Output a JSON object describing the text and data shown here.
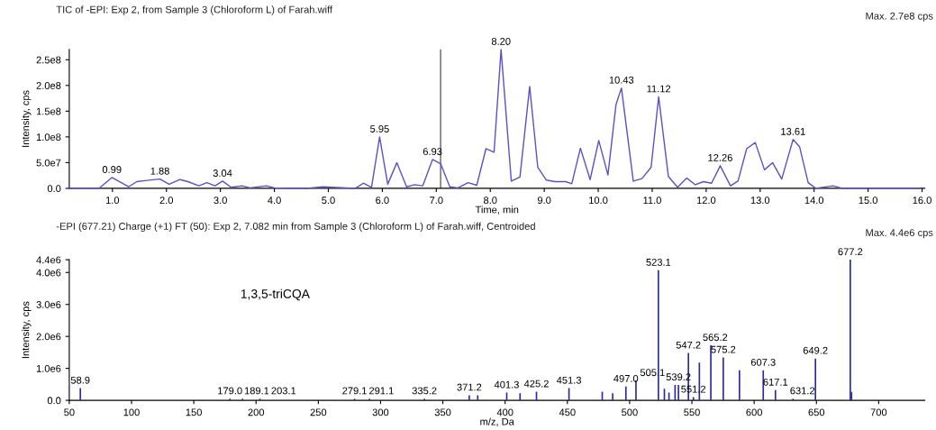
{
  "chart_data": [
    {
      "type": "line",
      "title": "TIC of -EPI: Exp 2, from Sample 3 (Chloroform L) of Farah.wiff",
      "xlabel": "Time, min",
      "ylabel": "Intensity, cps",
      "x": [
        0.2,
        0.75,
        0.99,
        1.3,
        1.45,
        1.6,
        1.88,
        2.05,
        2.25,
        2.4,
        2.6,
        2.75,
        2.9,
        3.04,
        3.2,
        3.4,
        3.55,
        3.85,
        4.0,
        4.3,
        4.6,
        4.9,
        5.5,
        5.65,
        5.8,
        5.95,
        6.1,
        6.27,
        6.45,
        6.6,
        6.75,
        6.93,
        7.08,
        7.25,
        7.4,
        7.59,
        7.75,
        7.92,
        8.07,
        8.2,
        8.39,
        8.55,
        8.73,
        8.88,
        9.04,
        9.2,
        9.4,
        9.51,
        9.67,
        9.85,
        10.01,
        10.18,
        10.33,
        10.43,
        10.65,
        10.81,
        10.98,
        11.12,
        11.3,
        11.47,
        11.64,
        11.8,
        11.95,
        12.1,
        12.26,
        12.45,
        12.59,
        12.75,
        12.91,
        13.08,
        13.23,
        13.4,
        13.61,
        13.73,
        13.89,
        14.03,
        14.35,
        14.52,
        15.95
      ],
      "series": [
        {
          "color": "#5a50c8",
          "values": [
            0,
            0,
            21000000,
            3000000,
            13000000,
            15000000,
            18000000,
            8000000,
            17000000,
            13000000,
            5000000,
            11000000,
            5000000,
            14000000,
            2000000,
            5000000,
            1000000,
            5000000,
            1000000,
            0,
            0,
            3000000,
            0,
            10000000,
            2000000,
            100000000,
            8000000,
            50000000,
            3000000,
            7000000,
            5000000,
            56000000,
            48000000,
            3000000,
            1000000,
            11000000,
            6000000,
            77000000,
            70000000,
            270000000,
            14000000,
            22000000,
            198000000,
            41000000,
            16000000,
            13000000,
            13000000,
            9000000,
            78000000,
            17000000,
            93000000,
            26000000,
            163000000,
            195000000,
            14000000,
            19000000,
            41000000,
            178000000,
            23000000,
            2000000,
            20000000,
            7000000,
            13000000,
            10000000,
            44000000,
            5000000,
            14000000,
            77000000,
            89000000,
            36000000,
            50000000,
            18000000,
            95000000,
            81000000,
            11000000,
            0,
            5000000,
            0,
            0
          ]
        }
      ],
      "xlim": [
        0.2,
        16.05
      ],
      "ylim": [
        0,
        270000000
      ],
      "xticks": [
        {
          "value": 1,
          "label": "1.0"
        },
        {
          "value": 2,
          "label": "2.0"
        },
        {
          "value": 3,
          "label": "3.0"
        },
        {
          "value": 4,
          "label": "4.0"
        },
        {
          "value": 5,
          "label": "5.0"
        },
        {
          "value": 6,
          "label": "6.0"
        },
        {
          "value": 7,
          "label": "7.0"
        },
        {
          "value": 8,
          "label": "8.0"
        },
        {
          "value": 9,
          "label": "9.0"
        },
        {
          "value": 10,
          "label": "10.0"
        },
        {
          "value": 11,
          "label": "11.0"
        },
        {
          "value": 12,
          "label": "12.0"
        },
        {
          "value": 13,
          "label": "13.0"
        },
        {
          "value": 14,
          "label": "14.0"
        },
        {
          "value": 15,
          "label": "15.0"
        },
        {
          "value": 16,
          "label": "16.0"
        }
      ],
      "yticks": [
        {
          "value": 0,
          "label": "0.0"
        },
        {
          "value": 50000000,
          "label": "5.0e7"
        },
        {
          "value": 100000000,
          "label": "1.0e8"
        },
        {
          "value": 150000000,
          "label": "1.5e8"
        },
        {
          "value": 200000000,
          "label": "2.0e8"
        },
        {
          "value": 250000000,
          "label": "2.5e8"
        }
      ],
      "ref_lines": [
        {
          "axis": "x",
          "value": 7.08,
          "color": "#606060"
        }
      ],
      "annotations": [
        "Max. 2.7e8 cps",
        {
          "text": "0.99",
          "x": 0.99,
          "y": 21000000
        },
        {
          "text": "1.88",
          "x": 1.88,
          "y": 18000000
        },
        {
          "text": "3.04",
          "x": 3.04,
          "y": 14000000
        },
        {
          "text": "5.95",
          "x": 5.95,
          "y": 100000000
        },
        {
          "text": "6.93",
          "x": 6.93,
          "y": 56000000
        },
        {
          "text": "8.20",
          "x": 8.2,
          "y": 270000000
        },
        {
          "text": "10.43",
          "x": 10.43,
          "y": 195000000
        },
        {
          "text": "11.12",
          "x": 11.12,
          "y": 178000000
        },
        {
          "text": "12.26",
          "x": 12.26,
          "y": 44000000
        },
        {
          "text": "13.61",
          "x": 13.61,
          "y": 95000000
        }
      ],
      "grid": false,
      "legend": false
    },
    {
      "type": "bar",
      "title": "-EPI (677.21) Charge (+1) FT (50): Exp 2, 7.082 min from Sample 3 (Chloroform L) of Farah.wiff, Centroided",
      "xlabel": "m/z, Da",
      "ylabel": "Intensity, cps",
      "x": [
        58.9,
        179.0,
        189.1,
        203.1,
        279.1,
        291.1,
        335.2,
        371.2,
        378,
        401.3,
        412,
        425.2,
        451.3,
        478,
        486.4,
        497.0,
        505.1,
        523.1,
        527.9,
        531.6,
        536.5,
        539.2,
        547.2,
        551.2,
        556,
        565.2,
        575.2,
        588.2,
        607.3,
        617.1,
        631.2,
        649.2,
        677.2,
        678.2
      ],
      "series": [
        {
          "color": "#2a2aa0",
          "values": [
            380000,
            50000,
            50000,
            50000,
            50000,
            50000,
            50000,
            160000,
            160000,
            240000,
            220000,
            270000,
            380000,
            270000,
            220000,
            430000,
            620000,
            4070000,
            360000,
            240000,
            480000,
            480000,
            1480000,
            100000,
            1180000,
            1720000,
            1340000,
            940000,
            940000,
            320000,
            50000,
            1310000,
            4400000,
            260000
          ]
        }
      ],
      "xlim": [
        50,
        737
      ],
      "ylim": [
        0,
        4400000
      ],
      "xticks": [
        50,
        100,
        150,
        200,
        250,
        300,
        350,
        400,
        450,
        500,
        550,
        600,
        650,
        700
      ],
      "yticks": [
        {
          "value": 0,
          "label": "0.0"
        },
        {
          "value": 1000000,
          "label": "1.0e6"
        },
        {
          "value": 2000000,
          "label": "2.0e6"
        },
        {
          "value": 3000000,
          "label": "3.0e6"
        },
        {
          "value": 4000000,
          "label": "4.0e6"
        },
        {
          "value": 4400000,
          "label": "4.4e6"
        }
      ],
      "annotations": [
        "Max. 4.4e6 cps",
        "1,3,5-triCQA",
        {
          "text": "58.9",
          "x": 58.9,
          "y": 380000
        },
        {
          "text": "179.0",
          "x": 179.0,
          "y": 50000
        },
        {
          "text": "189.1",
          "x": 189.1,
          "y": 50000
        },
        {
          "text": "203.1",
          "x": 203.1,
          "y": 50000
        },
        {
          "text": "279.1",
          "x": 279.1,
          "y": 50000
        },
        {
          "text": "291.1",
          "x": 291.1,
          "y": 50000
        },
        {
          "text": "335.2",
          "x": 335.2,
          "y": 50000
        },
        {
          "text": "371.2",
          "x": 371.2,
          "y": 160000
        },
        {
          "text": "401.3",
          "x": 401.3,
          "y": 240000
        },
        {
          "text": "425.2",
          "x": 425.2,
          "y": 270000
        },
        {
          "text": "451.3",
          "x": 451.3,
          "y": 380000
        },
        {
          "text": "497.0",
          "x": 497.0,
          "y": 430000
        },
        {
          "text": "505.1",
          "x": 505.1,
          "y": 620000
        },
        {
          "text": "523.1",
          "x": 523.1,
          "y": 4070000
        },
        {
          "text": "539.2",
          "x": 539.2,
          "y": 480000
        },
        {
          "text": "547.2",
          "x": 547.2,
          "y": 1480000
        },
        {
          "text": "551.2",
          "x": 551.2,
          "y": 100000
        },
        {
          "text": "565.2",
          "x": 565.2,
          "y": 1720000
        },
        {
          "text": "575.2",
          "x": 575.2,
          "y": 1340000
        },
        {
          "text": "607.3",
          "x": 607.3,
          "y": 940000
        },
        {
          "text": "617.1",
          "x": 617.1,
          "y": 320000
        },
        {
          "text": "631.2",
          "x": 631.2,
          "y": 50000
        },
        {
          "text": "649.2",
          "x": 649.2,
          "y": 1310000
        },
        {
          "text": "677.2",
          "x": 677.2,
          "y": 4400000
        }
      ],
      "grid": false,
      "legend": false
    }
  ]
}
